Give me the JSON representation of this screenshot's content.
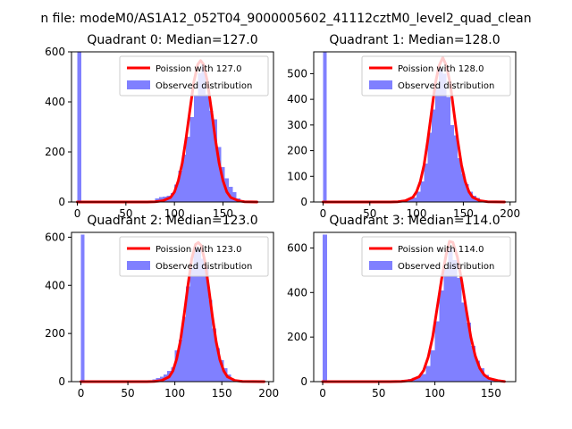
{
  "figure_title": "n file: modeM0/AS1A12_052T04_9000005602_41112cztM0_level2_quad_clean",
  "colors": {
    "hist": "#8080ff",
    "poisson": "#ff0000",
    "axis": "#000000"
  },
  "chart_data": [
    {
      "type": "histogram+line",
      "title": "Quadrant 0: Median=127.0",
      "legend": [
        "Poission with 127.0",
        "Observed distribution"
      ],
      "legend_position": "upper right",
      "median": 127.0,
      "xlim": [
        -6,
        202
      ],
      "ylim": [
        0,
        600
      ],
      "xticks": [
        0,
        50,
        100,
        150
      ],
      "yticks": [
        0,
        200,
        400,
        600
      ],
      "bin_width": 4,
      "spike": {
        "x": 0,
        "y": 600
      },
      "bins": [
        [
          76,
          5
        ],
        [
          80,
          15
        ],
        [
          84,
          20
        ],
        [
          88,
          22
        ],
        [
          92,
          25
        ],
        [
          96,
          35
        ],
        [
          100,
          70
        ],
        [
          104,
          125
        ],
        [
          108,
          190
        ],
        [
          112,
          260
        ],
        [
          116,
          340
        ],
        [
          120,
          425
        ],
        [
          124,
          515
        ],
        [
          128,
          550
        ],
        [
          132,
          430
        ],
        [
          136,
          365
        ],
        [
          140,
          330
        ],
        [
          144,
          220
        ],
        [
          148,
          140
        ],
        [
          152,
          95
        ],
        [
          156,
          60
        ],
        [
          160,
          40
        ],
        [
          164,
          15
        ],
        [
          168,
          8
        ],
        [
          172,
          3
        ]
      ],
      "line": {
        "points": [
          [
            0,
            0
          ],
          [
            72,
            0
          ],
          [
            80,
            1
          ],
          [
            88,
            5
          ],
          [
            96,
            18
          ],
          [
            100,
            40
          ],
          [
            104,
            85
          ],
          [
            108,
            155
          ],
          [
            112,
            255
          ],
          [
            116,
            370
          ],
          [
            120,
            480
          ],
          [
            124,
            550
          ],
          [
            127,
            565
          ],
          [
            130,
            550
          ],
          [
            134,
            480
          ],
          [
            138,
            370
          ],
          [
            142,
            255
          ],
          [
            146,
            155
          ],
          [
            150,
            85
          ],
          [
            154,
            40
          ],
          [
            158,
            18
          ],
          [
            166,
            5
          ],
          [
            172,
            1
          ],
          [
            185,
            0
          ]
        ]
      }
    },
    {
      "type": "histogram+line",
      "title": "Quadrant 1: Median=128.0",
      "legend": [
        "Poission with 128.0",
        "Observed distribution"
      ],
      "legend_position": "upper right",
      "median": 128.0,
      "xlim": [
        -10,
        206
      ],
      "ylim": [
        0,
        585
      ],
      "xticks": [
        0,
        50,
        100,
        150,
        200
      ],
      "yticks": [
        0,
        100,
        200,
        300,
        400,
        500
      ],
      "bin_width": 4,
      "spike": {
        "x": 0,
        "y": 585
      },
      "bins": [
        [
          80,
          5
        ],
        [
          84,
          8
        ],
        [
          88,
          10
        ],
        [
          92,
          15
        ],
        [
          96,
          18
        ],
        [
          100,
          40
        ],
        [
          104,
          80
        ],
        [
          108,
          150
        ],
        [
          112,
          270
        ],
        [
          116,
          360
        ],
        [
          120,
          440
        ],
        [
          124,
          520
        ],
        [
          128,
          500
        ],
        [
          132,
          410
        ],
        [
          136,
          300
        ],
        [
          140,
          260
        ],
        [
          144,
          170
        ],
        [
          148,
          110
        ],
        [
          152,
          70
        ],
        [
          156,
          40
        ],
        [
          160,
          25
        ],
        [
          164,
          15
        ],
        [
          168,
          5
        ],
        [
          172,
          2
        ]
      ],
      "line": {
        "points": [
          [
            0,
            0
          ],
          [
            72,
            0
          ],
          [
            80,
            1
          ],
          [
            88,
            5
          ],
          [
            96,
            18
          ],
          [
            100,
            40
          ],
          [
            104,
            80
          ],
          [
            108,
            145
          ],
          [
            112,
            240
          ],
          [
            116,
            350
          ],
          [
            120,
            460
          ],
          [
            124,
            530
          ],
          [
            128,
            563
          ],
          [
            132,
            530
          ],
          [
            136,
            460
          ],
          [
            140,
            350
          ],
          [
            144,
            240
          ],
          [
            148,
            145
          ],
          [
            152,
            80
          ],
          [
            156,
            40
          ],
          [
            160,
            18
          ],
          [
            168,
            5
          ],
          [
            176,
            1
          ],
          [
            194,
            0
          ]
        ]
      }
    },
    {
      "type": "histogram+line",
      "title": "Quadrant 2: Median=123.0",
      "legend": [
        "Poission with 123.0",
        "Observed distribution"
      ],
      "legend_position": "upper right",
      "median": 123.0,
      "xlim": [
        -10,
        205
      ],
      "ylim": [
        0,
        620
      ],
      "xticks": [
        0,
        50,
        100,
        150,
        200
      ],
      "yticks": [
        0,
        200,
        400,
        600
      ],
      "bin_width": 4,
      "spike": {
        "x": 0,
        "y": 610
      },
      "bins": [
        [
          72,
          5
        ],
        [
          76,
          10
        ],
        [
          80,
          15
        ],
        [
          84,
          20
        ],
        [
          88,
          30
        ],
        [
          92,
          45
        ],
        [
          96,
          60
        ],
        [
          100,
          130
        ],
        [
          104,
          175
        ],
        [
          108,
          270
        ],
        [
          112,
          395
        ],
        [
          116,
          475
        ],
        [
          120,
          560
        ],
        [
          124,
          550
        ],
        [
          128,
          510
        ],
        [
          132,
          475
        ],
        [
          136,
          340
        ],
        [
          140,
          220
        ],
        [
          144,
          140
        ],
        [
          148,
          90
        ],
        [
          152,
          55
        ],
        [
          156,
          30
        ],
        [
          160,
          10
        ],
        [
          164,
          3
        ]
      ],
      "line": {
        "points": [
          [
            0,
            0
          ],
          [
            70,
            0
          ],
          [
            78,
            1
          ],
          [
            86,
            5
          ],
          [
            94,
            20
          ],
          [
            98,
            45
          ],
          [
            102,
            95
          ],
          [
            106,
            170
          ],
          [
            110,
            280
          ],
          [
            114,
            400
          ],
          [
            118,
            510
          ],
          [
            122,
            570
          ],
          [
            125,
            578
          ],
          [
            128,
            565
          ],
          [
            132,
            500
          ],
          [
            136,
            390
          ],
          [
            140,
            270
          ],
          [
            144,
            165
          ],
          [
            148,
            90
          ],
          [
            152,
            45
          ],
          [
            156,
            20
          ],
          [
            164,
            5
          ],
          [
            172,
            1
          ],
          [
            195,
            0
          ]
        ]
      }
    },
    {
      "type": "histogram+line",
      "title": "Quadrant 3: Median=114.0",
      "legend": [
        "Poission with 114.0",
        "Observed distribution"
      ],
      "legend_position": "upper right",
      "median": 114.0,
      "xlim": [
        -8,
        172
      ],
      "ylim": [
        0,
        670
      ],
      "xticks": [
        0,
        50,
        100,
        150
      ],
      "yticks": [
        0,
        200,
        400,
        600
      ],
      "bin_width": 4,
      "spike": {
        "x": 0,
        "y": 660
      },
      "bins": [
        [
          68,
          3
        ],
        [
          72,
          8
        ],
        [
          76,
          12
        ],
        [
          80,
          18
        ],
        [
          84,
          25
        ],
        [
          88,
          35
        ],
        [
          92,
          70
        ],
        [
          96,
          140
        ],
        [
          100,
          270
        ],
        [
          104,
          410
        ],
        [
          108,
          505
        ],
        [
          112,
          600
        ],
        [
          116,
          545
        ],
        [
          120,
          465
        ],
        [
          124,
          355
        ],
        [
          128,
          265
        ],
        [
          132,
          160
        ],
        [
          136,
          95
        ],
        [
          140,
          60
        ],
        [
          144,
          30
        ],
        [
          148,
          15
        ],
        [
          152,
          5
        ]
      ],
      "line": {
        "points": [
          [
            0,
            0
          ],
          [
            60,
            0
          ],
          [
            70,
            1
          ],
          [
            78,
            5
          ],
          [
            86,
            22
          ],
          [
            90,
            50
          ],
          [
            94,
            110
          ],
          [
            98,
            200
          ],
          [
            102,
            330
          ],
          [
            106,
            460
          ],
          [
            110,
            570
          ],
          [
            113,
            630
          ],
          [
            116,
            625
          ],
          [
            120,
            560
          ],
          [
            124,
            450
          ],
          [
            128,
            320
          ],
          [
            132,
            200
          ],
          [
            136,
            115
          ],
          [
            140,
            60
          ],
          [
            144,
            30
          ],
          [
            148,
            15
          ],
          [
            156,
            5
          ],
          [
            162,
            1
          ]
        ]
      }
    }
  ]
}
